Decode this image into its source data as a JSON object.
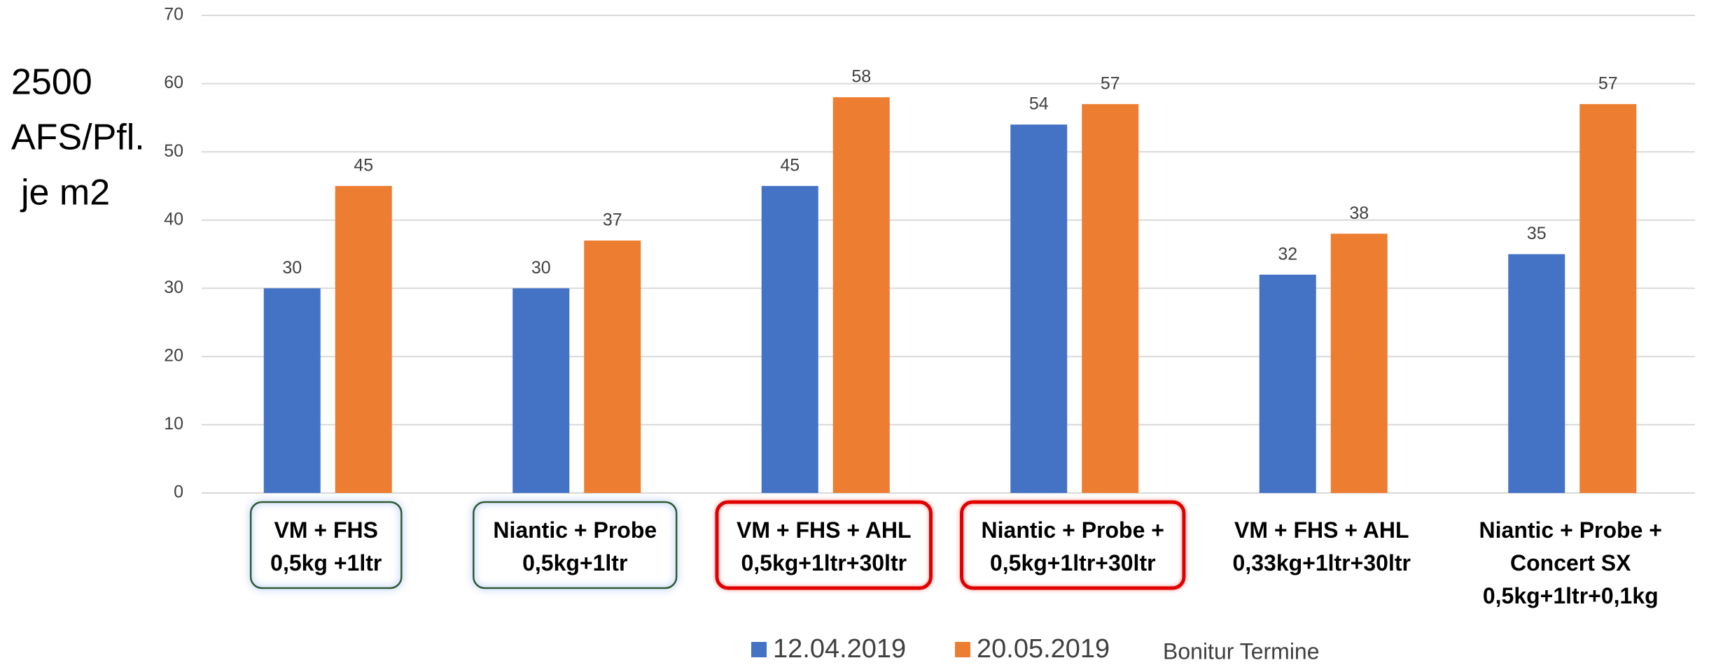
{
  "chart_data": {
    "type": "bar",
    "y_label_lines": [
      "2500",
      "AFS/Pfl.",
      "je m2"
    ],
    "categories": [
      "VM + FHS\n0,5kg +1ltr",
      "Niantic + Probe\n0,5kg+1ltr",
      "VM + FHS + AHL\n0,5kg+1ltr+30ltr",
      "Niantic + Probe +\n0,5kg+1ltr+30ltr",
      "VM + FHS + AHL\n0,33kg+1ltr+30ltr",
      "Niantic + Probe +\nConcert SX\n0,5kg+1ltr+0,1kg"
    ],
    "label_highlight": [
      "#2e5a2e",
      "#2e5a2e",
      "#e00000",
      "#e00000",
      null,
      null
    ],
    "series": [
      {
        "name": "12.04.2019",
        "color": "#4472c4",
        "values": [
          30,
          30,
          45,
          54,
          32,
          35
        ]
      },
      {
        "name": "20.05.2019",
        "color": "#ed7d31",
        "values": [
          45,
          37,
          58,
          57,
          38,
          57
        ]
      }
    ],
    "legend_title": "Bonitur Termine",
    "ylim": [
      0,
      70
    ],
    "yticks": [
      0,
      10,
      20,
      30,
      40,
      50,
      60,
      70
    ],
    "grid": true
  }
}
